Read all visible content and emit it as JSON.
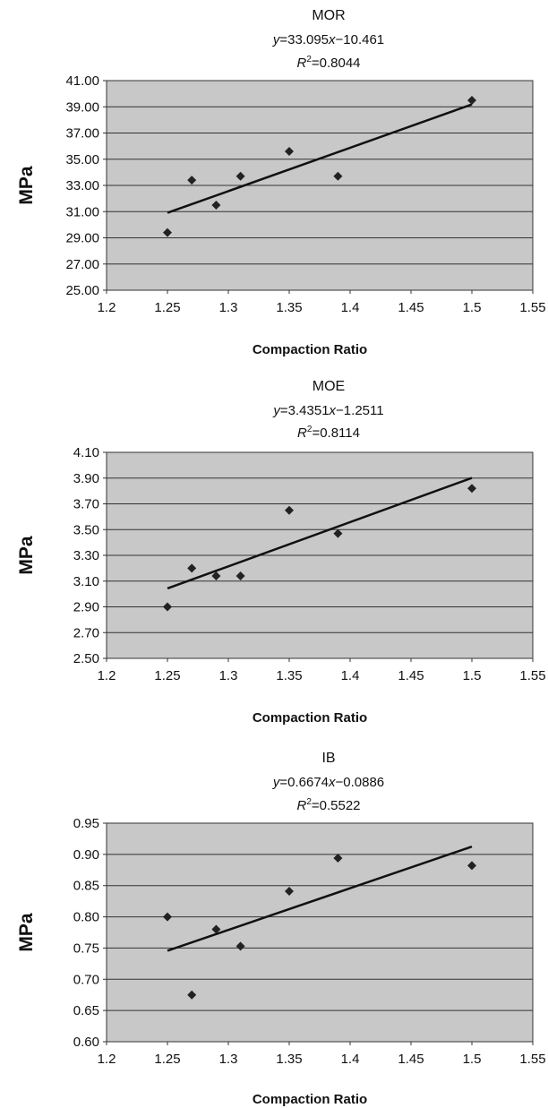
{
  "colors": {
    "plot_bg": "#c8c8c8",
    "gridline": "#333333",
    "marker": "#222222",
    "trendline": "#111111"
  },
  "chart_data": [
    {
      "type": "scatter",
      "title": "MOR",
      "equation": {
        "y_var": "y",
        "y_rest": "=33.095",
        "x_var": "x",
        "x_rest": "−10.461"
      },
      "r2": {
        "r": "R",
        "sup": "2",
        "rest": "=0.8044"
      },
      "ylabel": "MPa",
      "xlabel": "Compaction Ratio",
      "xlim": [
        1.2,
        1.55
      ],
      "ylim": [
        25,
        41
      ],
      "x_ticks": [
        "1.2",
        "1.25",
        "1.3",
        "1.35",
        "1.4",
        "1.45",
        "1.5",
        "1.55"
      ],
      "y_ticks": [
        "25.00",
        "27.00",
        "29.00",
        "31.00",
        "33.00",
        "35.00",
        "37.00",
        "39.00",
        "41.00"
      ],
      "grid": true,
      "points": [
        {
          "x": 1.25,
          "y": 29.4
        },
        {
          "x": 1.27,
          "y": 33.4
        },
        {
          "x": 1.29,
          "y": 31.5
        },
        {
          "x": 1.31,
          "y": 33.7
        },
        {
          "x": 1.35,
          "y": 35.6
        },
        {
          "x": 1.39,
          "y": 33.7
        },
        {
          "x": 1.5,
          "y": 39.5
        }
      ],
      "trendline": {
        "slope": 33.095,
        "intercept": -10.461,
        "x_range": [
          1.25,
          1.5
        ]
      }
    },
    {
      "type": "scatter",
      "title": "MOE",
      "equation": {
        "y_var": "y",
        "y_rest": "=3.4351",
        "x_var": "x",
        "x_rest": "−1.2511"
      },
      "r2": {
        "r": "R",
        "sup": "2",
        "rest": "=0.8114"
      },
      "ylabel": "MPa",
      "xlabel": "Compaction Ratio",
      "xlim": [
        1.2,
        1.55
      ],
      "ylim": [
        2.5,
        4.1
      ],
      "x_ticks": [
        "1.2",
        "1.25",
        "1.3",
        "1.35",
        "1.4",
        "1.45",
        "1.5",
        "1.55"
      ],
      "y_ticks": [
        "2.50",
        "2.70",
        "2.90",
        "3.10",
        "3.30",
        "3.50",
        "3.70",
        "3.90",
        "4.10"
      ],
      "grid": true,
      "points": [
        {
          "x": 1.25,
          "y": 2.9
        },
        {
          "x": 1.27,
          "y": 3.2
        },
        {
          "x": 1.29,
          "y": 3.14
        },
        {
          "x": 1.31,
          "y": 3.14
        },
        {
          "x": 1.35,
          "y": 3.65
        },
        {
          "x": 1.39,
          "y": 3.47
        },
        {
          "x": 1.5,
          "y": 3.82
        }
      ],
      "trendline": {
        "slope": 3.4351,
        "intercept": -1.2511,
        "x_range": [
          1.25,
          1.5
        ]
      }
    },
    {
      "type": "scatter",
      "title": "IB",
      "equation": {
        "y_var": "y",
        "y_rest": "=0.6674",
        "x_var": "x",
        "x_rest": "−0.0886"
      },
      "r2": {
        "r": "R",
        "sup": "2",
        "rest": "=0.5522"
      },
      "ylabel": "MPa",
      "xlabel": "Compaction Ratio",
      "xlim": [
        1.2,
        1.55
      ],
      "ylim": [
        0.6,
        0.95
      ],
      "x_ticks": [
        "1.2",
        "1.25",
        "1.3",
        "1.35",
        "1.4",
        "1.45",
        "1.5",
        "1.55"
      ],
      "y_ticks": [
        "0.60",
        "0.65",
        "0.70",
        "0.75",
        "0.80",
        "0.85",
        "0.90",
        "0.95"
      ],
      "grid": true,
      "points": [
        {
          "x": 1.25,
          "y": 0.8
        },
        {
          "x": 1.27,
          "y": 0.675
        },
        {
          "x": 1.29,
          "y": 0.78
        },
        {
          "x": 1.31,
          "y": 0.753
        },
        {
          "x": 1.35,
          "y": 0.841
        },
        {
          "x": 1.39,
          "y": 0.894
        },
        {
          "x": 1.5,
          "y": 0.882
        }
      ],
      "trendline": {
        "slope": 0.6674,
        "intercept": -0.0886,
        "x_range": [
          1.25,
          1.5
        ]
      }
    }
  ]
}
